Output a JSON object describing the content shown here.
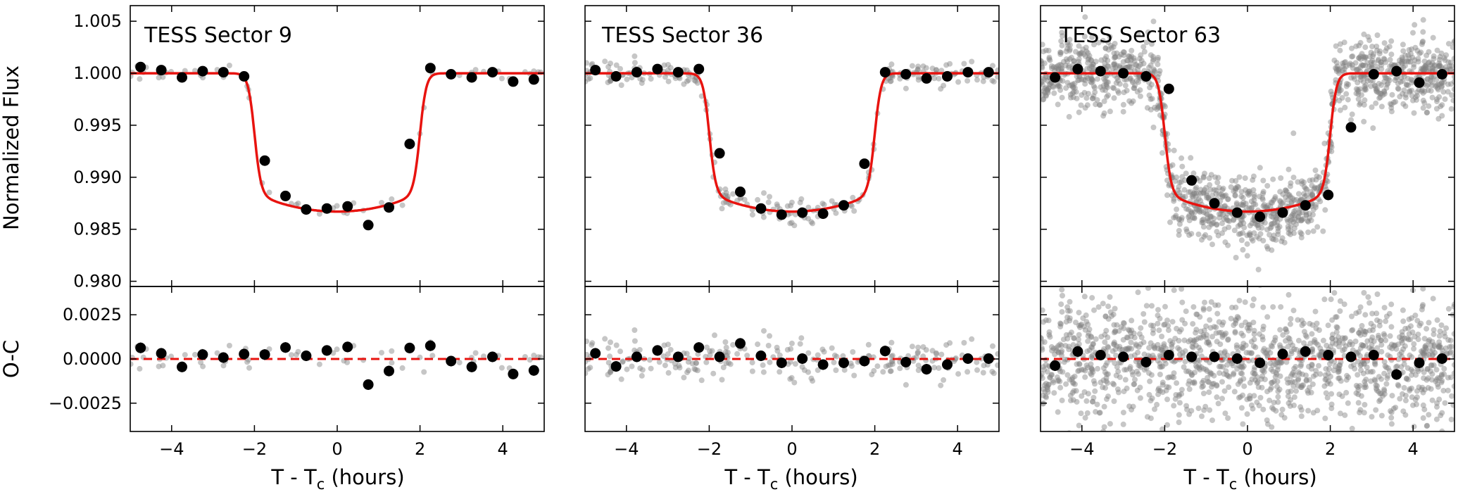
{
  "chart_data": {
    "type": "scatter",
    "description_units": {
      "x": "hours",
      "y": "normalized flux"
    },
    "y_label_top": "Normalized Flux",
    "y_label_bottom": "O-C",
    "x_label_prefix": "T - T",
    "x_label_subscript": "c",
    "x_label_suffix": " (hours)",
    "xlim": [
      -5.0,
      5.0
    ],
    "ylim_top": [
      0.9795,
      1.0065
    ],
    "ylim_bottom": [
      -0.0041,
      0.0041
    ],
    "x_ticks": [
      -4,
      -2,
      0,
      2,
      4
    ],
    "x_tick_labels": [
      "−4",
      "−2",
      "0",
      "2",
      "4"
    ],
    "y_ticks_top": [
      0.98,
      0.985,
      0.99,
      0.995,
      1.0,
      1.005
    ],
    "y_tick_labels_top": [
      "0.980",
      "0.985",
      "0.990",
      "0.995",
      "1.000",
      "1.005"
    ],
    "y_ticks_bottom": [
      -0.0025,
      0.0,
      0.0025
    ],
    "y_tick_labels_bottom": [
      "−0.0025",
      "0.0000",
      "0.0025"
    ],
    "model": {
      "baseline": 1.0,
      "depth": 0.0133,
      "t14_hours": 4.0,
      "ingress_hours": 0.35,
      "limb_curvature": 0.13
    },
    "colors": {
      "model": "#e8130f",
      "binned": "#000000",
      "raw": "#808080"
    },
    "panels": [
      {
        "title": "TESS Sector 9",
        "raw_count": 60,
        "raw_scatter": 0.00035,
        "raw_seed": 9,
        "binned_x": [
          -4.75,
          -4.25,
          -3.75,
          -3.25,
          -2.75,
          -2.25,
          -1.75,
          -1.25,
          -0.75,
          -0.25,
          0.25,
          0.75,
          1.25,
          1.75,
          2.25,
          2.75,
          3.25,
          3.75,
          4.25,
          4.75
        ],
        "binned_flux": [
          1.0006,
          1.0003,
          0.9996,
          1.0002,
          1.0001,
          0.9997,
          0.9916,
          0.9882,
          0.9869,
          0.987,
          0.9872,
          0.9854,
          0.9871,
          0.9932,
          1.0005,
          0.9999,
          0.9996,
          1.0001,
          0.9992,
          0.9994
        ],
        "binned_resid": [
          0.00063,
          0.00032,
          -0.00045,
          0.00025,
          8e-05,
          0.00028,
          0.00025,
          0.00065,
          0.00018,
          0.00048,
          0.00068,
          -0.00145,
          -0.00068,
          0.00062,
          0.00075,
          -0.00012,
          -0.00045,
          0.00012,
          -0.00085,
          -0.00065
        ],
        "error_bar": 0.0003
      },
      {
        "title": "TESS Sector 36",
        "raw_count": 230,
        "raw_scatter": 0.0006,
        "raw_seed": 36,
        "binned_x": [
          -4.75,
          -4.25,
          -3.75,
          -3.25,
          -2.75,
          -2.25,
          -1.75,
          -1.25,
          -0.75,
          -0.25,
          0.25,
          0.75,
          1.25,
          1.75,
          2.25,
          2.75,
          3.25,
          3.75,
          4.25,
          4.75
        ],
        "binned_flux": [
          1.0003,
          0.9997,
          1.0001,
          1.0004,
          1.0001,
          1.0004,
          0.9923,
          0.9886,
          0.987,
          0.9864,
          0.9866,
          0.9865,
          0.9873,
          0.9913,
          1.0001,
          0.9999,
          0.9995,
          0.9997,
          1.0001,
          1.0001
        ],
        "binned_resid": [
          0.00032,
          -0.00042,
          0.00012,
          0.00048,
          0.00012,
          0.00065,
          0.00012,
          0.00088,
          0.00018,
          -0.00022,
          2e-05,
          -0.00032,
          -0.00022,
          -0.00012,
          0.00045,
          -0.00018,
          -0.00058,
          -0.00032,
          2e-05,
          2e-05
        ],
        "error_bar": 0.0003
      },
      {
        "title": "TESS Sector 63",
        "raw_count": 1400,
        "raw_scatter": 0.0017,
        "raw_seed": 63,
        "binned_x": [
          -4.65,
          -4.1,
          -3.55,
          -3.0,
          -2.45,
          -1.9,
          -1.35,
          -0.8,
          -0.25,
          0.3,
          0.85,
          1.4,
          1.95,
          2.5,
          3.05,
          3.6,
          4.15,
          4.7
        ],
        "binned_flux": [
          0.9996,
          1.0004,
          1.0002,
          1.0,
          0.9997,
          0.9985,
          0.9897,
          0.9875,
          0.9866,
          0.9862,
          0.9866,
          0.9873,
          0.9883,
          0.9948,
          0.9999,
          1.0002,
          0.9991,
          0.9999
        ],
        "binned_resid": [
          -0.00038,
          0.00042,
          0.00022,
          0.00012,
          -0.00018,
          0.00022,
          0.00012,
          0.00012,
          2e-05,
          -0.00022,
          0.00028,
          0.00042,
          0.00022,
          0.00012,
          0.00022,
          -0.00088,
          -0.00022,
          2e-05
        ],
        "error_bar": 0.0003
      }
    ]
  }
}
